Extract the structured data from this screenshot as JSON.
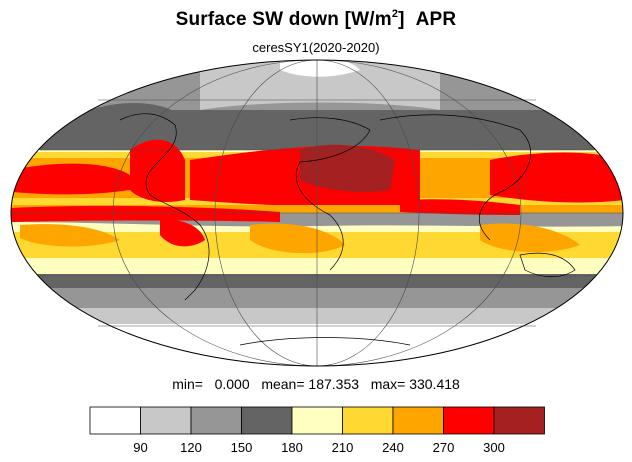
{
  "title": {
    "text": "Surface SW down [W/m",
    "sup": "2",
    "close": "]",
    "month": "APR"
  },
  "subtitle": "ceresSY1(2020-2020)",
  "stats": {
    "min_label": "min=",
    "min_value": "0.000",
    "mean_label": "mean=",
    "mean_value": "187.353",
    "max_label": "max=",
    "max_value": "330.418"
  },
  "colorbar": {
    "levels": [
      "90",
      "120",
      "150",
      "180",
      "210",
      "240",
      "270",
      "300"
    ],
    "colors": [
      "#ffffff",
      "#c8c8c8",
      "#969696",
      "#646464",
      "#ffffc0",
      "#ffd832",
      "#ffa500",
      "#ff0000",
      "#a52020"
    ]
  },
  "map": {
    "projection": "Mollweide",
    "field": "surface downward shortwave radiation",
    "units": "W/m2",
    "month": "APR"
  }
}
